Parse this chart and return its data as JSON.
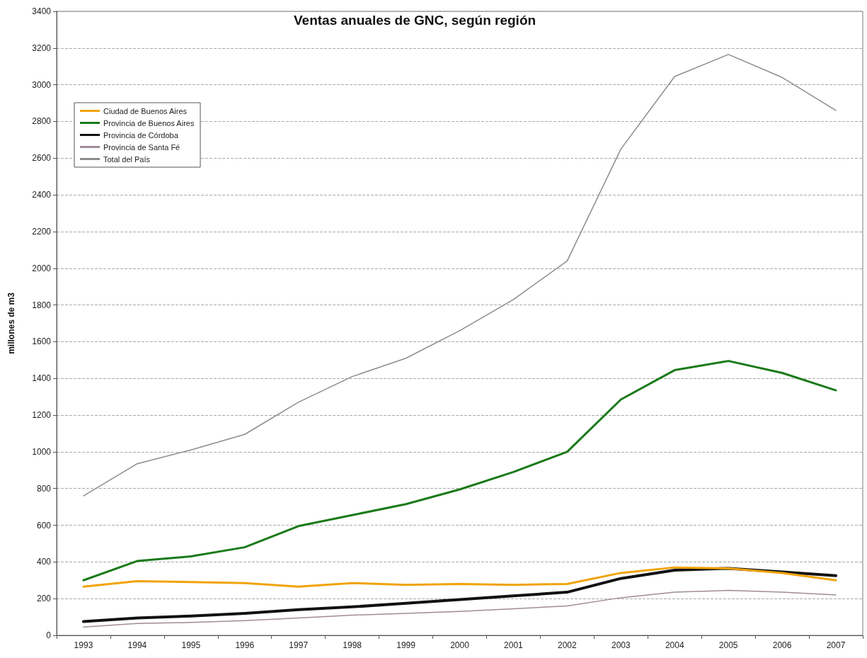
{
  "chart_data": {
    "type": "line",
    "title": "Ventas anuales de GNC, según región",
    "ylabel": "millones de m3",
    "categories": [
      "1993",
      "1994",
      "1995",
      "1996",
      "1997",
      "1998",
      "1999",
      "2000",
      "2001",
      "2002",
      "2003",
      "2004",
      "2005",
      "2006",
      "2007"
    ],
    "series": [
      {
        "name": "Ciudad de Buenos Aires",
        "color": "#f0a30a",
        "values": [
          265,
          295,
          290,
          285,
          265,
          285,
          275,
          280,
          275,
          280,
          340,
          370,
          365,
          340,
          300
        ]
      },
      {
        "name": "Provincia de Buenos Aires",
        "color": "#1a7a1a",
        "values": [
          300,
          405,
          430,
          480,
          595,
          655,
          715,
          795,
          890,
          1000,
          1285,
          1445,
          1495,
          1430,
          1335
        ]
      },
      {
        "name": "Provincia de Córdoba",
        "color": "#111111",
        "values": [
          75,
          95,
          105,
          120,
          140,
          155,
          175,
          195,
          215,
          235,
          310,
          355,
          365,
          345,
          325
        ]
      },
      {
        "name": "Provincia de Santa Fé",
        "color": "#a08c98",
        "values": [
          45,
          65,
          70,
          80,
          95,
          110,
          120,
          130,
          145,
          160,
          205,
          235,
          245,
          235,
          220
        ]
      },
      {
        "name": "Total del País",
        "color": "#8c8c8c",
        "values": [
          760,
          935,
          1010,
          1095,
          1270,
          1410,
          1510,
          1660,
          1830,
          2040,
          2650,
          3045,
          3165,
          3040,
          2860
        ]
      }
    ],
    "ylim": [
      0,
      3400
    ],
    "yticks": [
      0,
      200,
      400,
      600,
      800,
      1000,
      1200,
      1400,
      1600,
      1800,
      2000,
      2200,
      2400,
      2600,
      2800,
      3000,
      3200,
      3400
    ],
    "grid": "y",
    "legend": "top left",
    "marker": "none",
    "line_style": "solid"
  }
}
